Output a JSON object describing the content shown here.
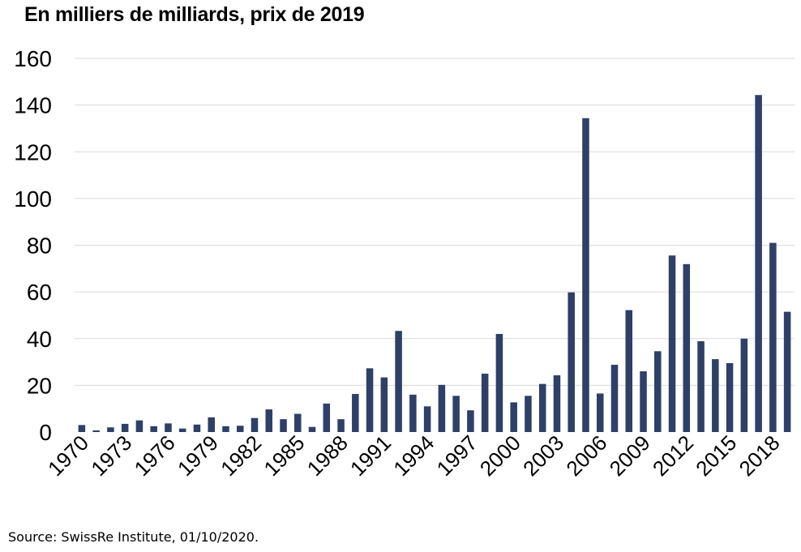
{
  "chart_data": {
    "type": "bar",
    "title": "En milliers de milliards, prix de 2019",
    "source": "Source: SwissRe Institute, 01/10/2020.",
    "categories": [
      "1970",
      "1971",
      "1972",
      "1973",
      "1974",
      "1975",
      "1976",
      "1977",
      "1978",
      "1979",
      "1980",
      "1981",
      "1982",
      "1983",
      "1984",
      "1985",
      "1986",
      "1987",
      "1988",
      "1989",
      "1990",
      "1991",
      "1992",
      "1993",
      "1994",
      "1995",
      "1996",
      "1997",
      "1998",
      "1999",
      "2000",
      "2001",
      "2002",
      "2003",
      "2004",
      "2005",
      "2006",
      "2007",
      "2008",
      "2009",
      "2010",
      "2011",
      "2012",
      "2013",
      "2014",
      "2015",
      "2016",
      "2017",
      "2018",
      "2019"
    ],
    "tick_labels": [
      "1970",
      "1973",
      "1976",
      "1979",
      "1982",
      "1985",
      "1988",
      "1991",
      "1994",
      "1997",
      "2000",
      "2003",
      "2006",
      "2009",
      "2012",
      "2015",
      "2018"
    ],
    "values": [
      3,
      0.7,
      2,
      3.5,
      5,
      2.5,
      3.7,
      1.5,
      3.2,
      6.3,
      2.5,
      2.7,
      6,
      9.7,
      5.5,
      7.8,
      2.2,
      12.2,
      5.5,
      16.3,
      27.3,
      23.4,
      43.3,
      16,
      11,
      20.2,
      15.5,
      9.3,
      25,
      42,
      12.7,
      15.5,
      20.6,
      24.3,
      59.8,
      134.4,
      16.5,
      28.8,
      52.2,
      26,
      34.6,
      75.6,
      71.9,
      38.9,
      31.2,
      29.5,
      40,
      144.3,
      81,
      51.5
    ],
    "yticks": [
      "0",
      "20",
      "40",
      "60",
      "80",
      "100",
      "120",
      "140",
      "160"
    ],
    "ylim": [
      0,
      160
    ],
    "grid": true,
    "bar_color": "#2e4068"
  }
}
